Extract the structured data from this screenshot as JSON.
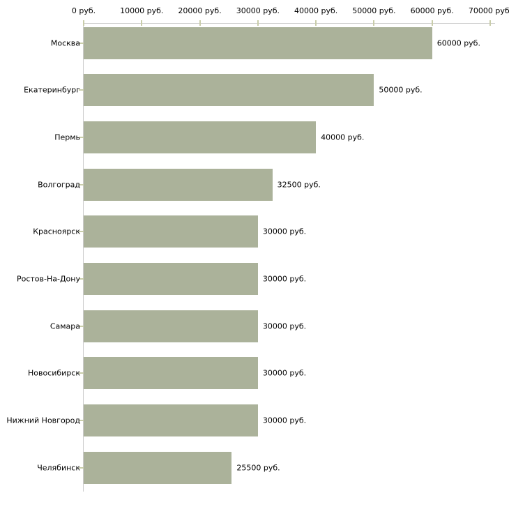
{
  "chart_data": {
    "type": "bar",
    "orientation": "horizontal",
    "categories": [
      "Москва",
      "Екатеринбург",
      "Пермь",
      "Волгоград",
      "Красноярск",
      "Ростов-На-Дону",
      "Самара",
      "Новосибирск",
      "Нижний Новгород",
      "Челябинск"
    ],
    "values": [
      60000,
      50000,
      40000,
      32500,
      30000,
      30000,
      30000,
      30000,
      30000,
      25500
    ],
    "value_labels": [
      "60000 руб.",
      "50000 руб.",
      "40000 руб.",
      "32500 руб.",
      "30000 руб.",
      "30000 руб.",
      "30000 руб.",
      "30000 руб.",
      "30000 руб.",
      "25500 руб."
    ],
    "x_tick_values": [
      0,
      10000,
      20000,
      30000,
      40000,
      50000,
      60000,
      70000
    ],
    "x_tick_labels": [
      "0 руб.",
      "10000 руб.",
      "20000 руб.",
      "30000 руб.",
      "40000 руб.",
      "50000 руб.",
      "60000 руб.",
      "70000 руб."
    ],
    "xlim": [
      0,
      70000
    ],
    "grid": false,
    "legend": false,
    "unit_suffix": "руб.",
    "colors": {
      "bar": "#abb29a",
      "axis_line": "#cccccc",
      "tick_mark": "#c9cdaa",
      "text": "#000000",
      "background": "#ffffff"
    }
  }
}
